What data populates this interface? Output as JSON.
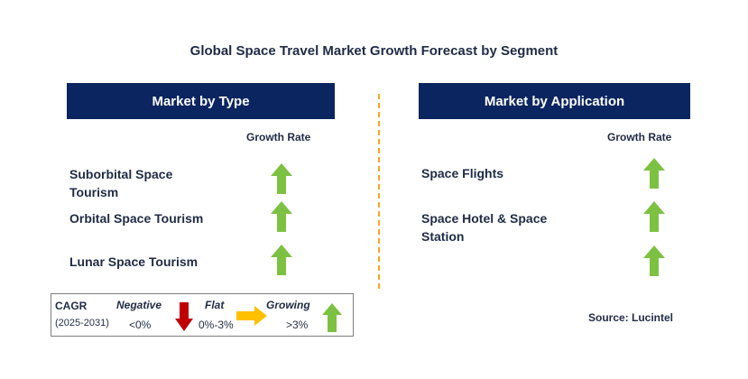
{
  "title": "Global Space Travel Market Growth Forecast by Segment",
  "left_panel": {
    "header": "Market by Type",
    "growth_rate_label": "Growth Rate",
    "items": [
      {
        "label_line1": "Suborbital Space",
        "label_line2": "Tourism",
        "trend": "growing"
      },
      {
        "label_line1": "Orbital Space Tourism",
        "label_line2": "",
        "trend": "growing"
      },
      {
        "label_line1": "Lunar Space Tourism",
        "label_line2": "",
        "trend": "growing"
      }
    ]
  },
  "right_panel": {
    "header": "Market by Application",
    "growth_rate_label": "Growth Rate",
    "items": [
      {
        "label_line1": "Space Flights",
        "label_line2": "",
        "trend": "growing"
      },
      {
        "label_line1": "Space Hotel & Space",
        "label_line2": "Station",
        "trend": "growing"
      },
      {
        "label_line1": "",
        "label_line2": "",
        "trend": "growing"
      }
    ]
  },
  "legend": {
    "cagr_label": "CAGR",
    "period": "(2025-2031)",
    "negative_label": "Negative",
    "negative_range": "<0%",
    "flat_label": "Flat",
    "flat_range": "0%-3%",
    "growing_label": "Growing",
    "growing_range": ">3%"
  },
  "source": "Source: Lucintel",
  "colors": {
    "header_bg": "#0b2560",
    "growing_arrow": "#7dc142",
    "negative_arrow": "#c00000",
    "flat_arrow": "#ffc000",
    "divider": "#f2a81d"
  }
}
